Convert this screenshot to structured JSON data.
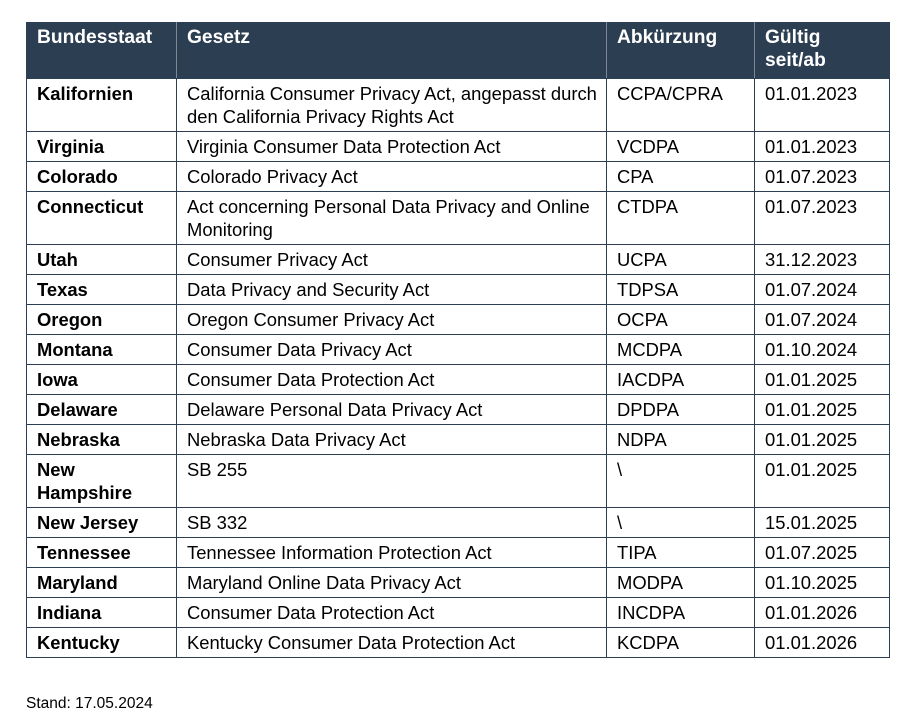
{
  "table": {
    "headers": {
      "state": "Bundesstaat",
      "law": "Gesetz",
      "abbreviation": "Abkürzung",
      "valid_line1": "Gültig",
      "valid_line2": "seit/ab"
    },
    "rows": [
      {
        "state": "Kalifornien",
        "law": "California Consumer Privacy Act, angepasst durch den California Privacy Rights Act",
        "abbreviation": "CCPA/CPRA",
        "valid": "01.01.2023"
      },
      {
        "state": "Virginia",
        "law": "Virginia Consumer Data Protection Act",
        "abbreviation": "VCDPA",
        "valid": "01.01.2023"
      },
      {
        "state": "Colorado",
        "law": "Colorado Privacy Act",
        "abbreviation": "CPA",
        "valid": "01.07.2023"
      },
      {
        "state": "Connecticut",
        "law": "Act concerning Personal Data Privacy and Online Monitoring",
        "abbreviation": "CTDPA",
        "valid": "01.07.2023"
      },
      {
        "state": "Utah",
        "law": "Consumer Privacy Act",
        "abbreviation": "UCPA",
        "valid": "31.12.2023"
      },
      {
        "state": "Texas",
        "law": "Data Privacy and Security Act",
        "abbreviation": "TDPSA",
        "valid": "01.07.2024"
      },
      {
        "state": "Oregon",
        "law": "Oregon Consumer Privacy Act",
        "abbreviation": "OCPA",
        "valid": "01.07.2024"
      },
      {
        "state": "Montana",
        "law": "Consumer Data Privacy Act",
        "abbreviation": "MCDPA",
        "valid": "01.10.2024"
      },
      {
        "state": "Iowa",
        "law": "Consumer Data Protection Act",
        "abbreviation": "IACDPA",
        "valid": "01.01.2025"
      },
      {
        "state": "Delaware",
        "law": "Delaware Personal Data Privacy Act",
        "abbreviation": "DPDPA",
        "valid": "01.01.2025"
      },
      {
        "state": "Nebraska",
        "law": "Nebraska Data Privacy Act",
        "abbreviation": "NDPA",
        "valid": "01.01.2025"
      },
      {
        "state": "New Hampshire",
        "law": "SB 255",
        "abbreviation": "\\",
        "valid": "01.01.2025"
      },
      {
        "state": "New Jersey",
        "law": "SB 332",
        "abbreviation": "\\",
        "valid": "15.01.2025"
      },
      {
        "state": "Tennessee",
        "law": "Tennessee Information Protection Act",
        "abbreviation": "TIPA",
        "valid": "01.07.2025"
      },
      {
        "state": "Maryland",
        "law": "Maryland Online Data Privacy Act",
        "abbreviation": "MODPA",
        "valid": "01.10.2025"
      },
      {
        "state": "Indiana",
        "law": "Consumer Data Protection Act",
        "abbreviation": "INCDPA",
        "valid": "01.01.2026"
      },
      {
        "state": "Kentucky",
        "law": "Kentucky Consumer Data Protection Act",
        "abbreviation": "KCDPA",
        "valid": "01.01.2026"
      }
    ]
  },
  "footnote": "Stand: 17.05.2024"
}
